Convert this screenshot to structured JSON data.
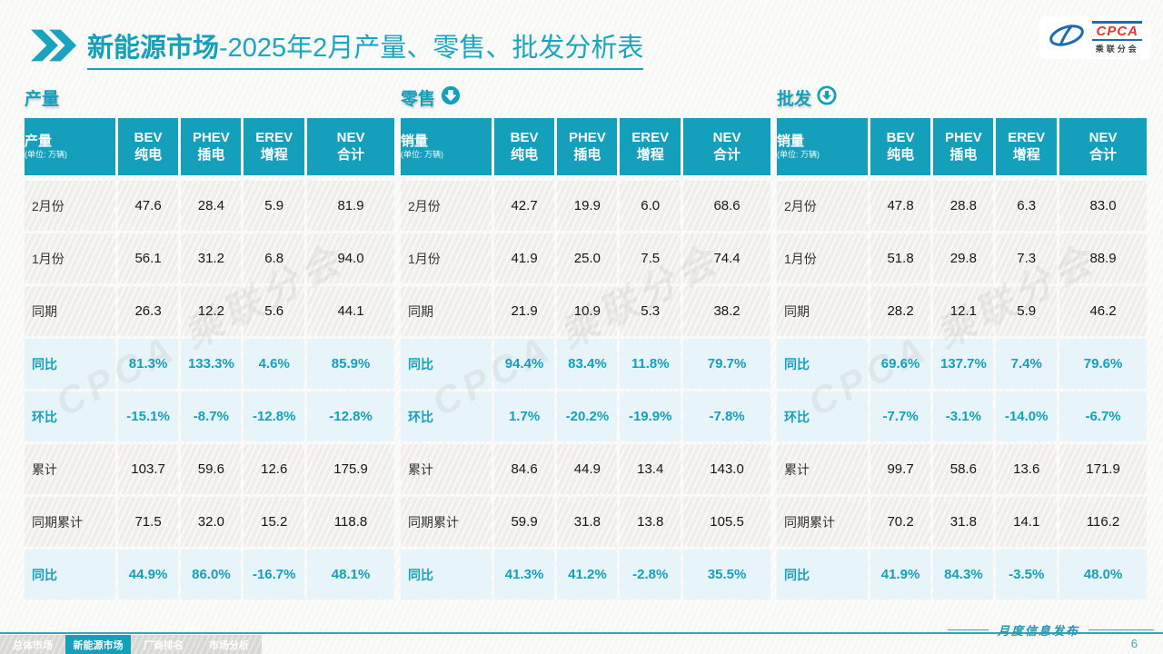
{
  "page": {
    "title_bold": "新能源市场",
    "title_rest": "-2025年2月产量、零售、批发分析表",
    "watermark": "CPCA 乘联分会",
    "footer_note": "月度信息发布",
    "page_number": "6",
    "accent_color": "#149fbb",
    "highlight_bg": "#e7f4f9"
  },
  "logo": {
    "name": "CPCA",
    "subname": "乘联分会"
  },
  "footer_tabs": [
    {
      "label": "总体市场",
      "active": false
    },
    {
      "label": "新能源市场",
      "active": true
    },
    {
      "label": "厂商排名",
      "active": false
    },
    {
      "label": "市场分析",
      "active": false
    }
  ],
  "tables": [
    {
      "section_title": "产量",
      "arrow": "",
      "label_header": "产量",
      "unit_label": "(单位: 万辆)",
      "col_headers": [
        {
          "en": "BEV",
          "zh": "纯电"
        },
        {
          "en": "PHEV",
          "zh": "插电"
        },
        {
          "en": "EREV",
          "zh": "增程"
        },
        {
          "en": "NEV",
          "zh": "合计"
        }
      ],
      "rows": [
        {
          "label": "2月份",
          "type": "plain",
          "values": [
            "47.6",
            "28.4",
            "5.9",
            "81.9"
          ]
        },
        {
          "label": "1月份",
          "type": "plain",
          "values": [
            "56.1",
            "31.2",
            "6.8",
            "94.0"
          ]
        },
        {
          "label": "同期",
          "type": "plain",
          "values": [
            "26.3",
            "12.2",
            "5.6",
            "44.1"
          ]
        },
        {
          "label": "同比",
          "type": "highlight",
          "values": [
            "81.3%",
            "133.3%",
            "4.6%",
            "85.9%"
          ]
        },
        {
          "label": "环比",
          "type": "highlight",
          "values": [
            "-15.1%",
            "-8.7%",
            "-12.8%",
            "-12.8%"
          ]
        },
        {
          "label": "累计",
          "type": "plain",
          "values": [
            "103.7",
            "59.6",
            "12.6",
            "175.9"
          ]
        },
        {
          "label": "同期累计",
          "type": "plain",
          "values": [
            "71.5",
            "32.0",
            "15.2",
            "118.8"
          ]
        },
        {
          "label": "同比",
          "type": "highlight",
          "values": [
            "44.9%",
            "86.0%",
            "-16.7%",
            "48.1%"
          ]
        }
      ]
    },
    {
      "section_title": "零售",
      "arrow": "filled-down",
      "label_header": "销量",
      "unit_label": "(单位: 万辆)",
      "col_headers": [
        {
          "en": "BEV",
          "zh": "纯电"
        },
        {
          "en": "PHEV",
          "zh": "插电"
        },
        {
          "en": "EREV",
          "zh": "增程"
        },
        {
          "en": "NEV",
          "zh": "合计"
        }
      ],
      "rows": [
        {
          "label": "2月份",
          "type": "plain",
          "values": [
            "42.7",
            "19.9",
            "6.0",
            "68.6"
          ]
        },
        {
          "label": "1月份",
          "type": "plain",
          "values": [
            "41.9",
            "25.0",
            "7.5",
            "74.4"
          ]
        },
        {
          "label": "同期",
          "type": "plain",
          "values": [
            "21.9",
            "10.9",
            "5.3",
            "38.2"
          ]
        },
        {
          "label": "同比",
          "type": "highlight",
          "values": [
            "94.4%",
            "83.4%",
            "11.8%",
            "79.7%"
          ]
        },
        {
          "label": "环比",
          "type": "highlight",
          "values": [
            "1.7%",
            "-20.2%",
            "-19.9%",
            "-7.8%"
          ]
        },
        {
          "label": "累计",
          "type": "plain",
          "values": [
            "84.6",
            "44.9",
            "13.4",
            "143.0"
          ]
        },
        {
          "label": "同期累计",
          "type": "plain",
          "values": [
            "59.9",
            "31.8",
            "13.8",
            "105.5"
          ]
        },
        {
          "label": "同比",
          "type": "highlight",
          "values": [
            "41.3%",
            "41.2%",
            "-2.8%",
            "35.5%"
          ]
        }
      ]
    },
    {
      "section_title": "批发",
      "arrow": "outline-down",
      "label_header": "销量",
      "unit_label": "(单位: 万辆)",
      "col_headers": [
        {
          "en": "BEV",
          "zh": "纯电"
        },
        {
          "en": "PHEV",
          "zh": "插电"
        },
        {
          "en": "EREV",
          "zh": "增程"
        },
        {
          "en": "NEV",
          "zh": "合计"
        }
      ],
      "rows": [
        {
          "label": "2月份",
          "type": "plain",
          "values": [
            "47.8",
            "28.8",
            "6.3",
            "83.0"
          ]
        },
        {
          "label": "1月份",
          "type": "plain",
          "values": [
            "51.8",
            "29.8",
            "7.3",
            "88.9"
          ]
        },
        {
          "label": "同期",
          "type": "plain",
          "values": [
            "28.2",
            "12.1",
            "5.9",
            "46.2"
          ]
        },
        {
          "label": "同比",
          "type": "highlight",
          "values": [
            "69.6%",
            "137.7%",
            "7.4%",
            "79.6%"
          ]
        },
        {
          "label": "环比",
          "type": "highlight",
          "values": [
            "-7.7%",
            "-3.1%",
            "-14.0%",
            "-6.7%"
          ]
        },
        {
          "label": "累计",
          "type": "plain",
          "values": [
            "99.7",
            "58.6",
            "13.6",
            "171.9"
          ]
        },
        {
          "label": "同期累计",
          "type": "plain",
          "values": [
            "70.2",
            "31.8",
            "14.1",
            "116.2"
          ]
        },
        {
          "label": "同比",
          "type": "highlight",
          "values": [
            "41.9%",
            "84.3%",
            "-3.5%",
            "48.0%"
          ]
        }
      ]
    }
  ]
}
